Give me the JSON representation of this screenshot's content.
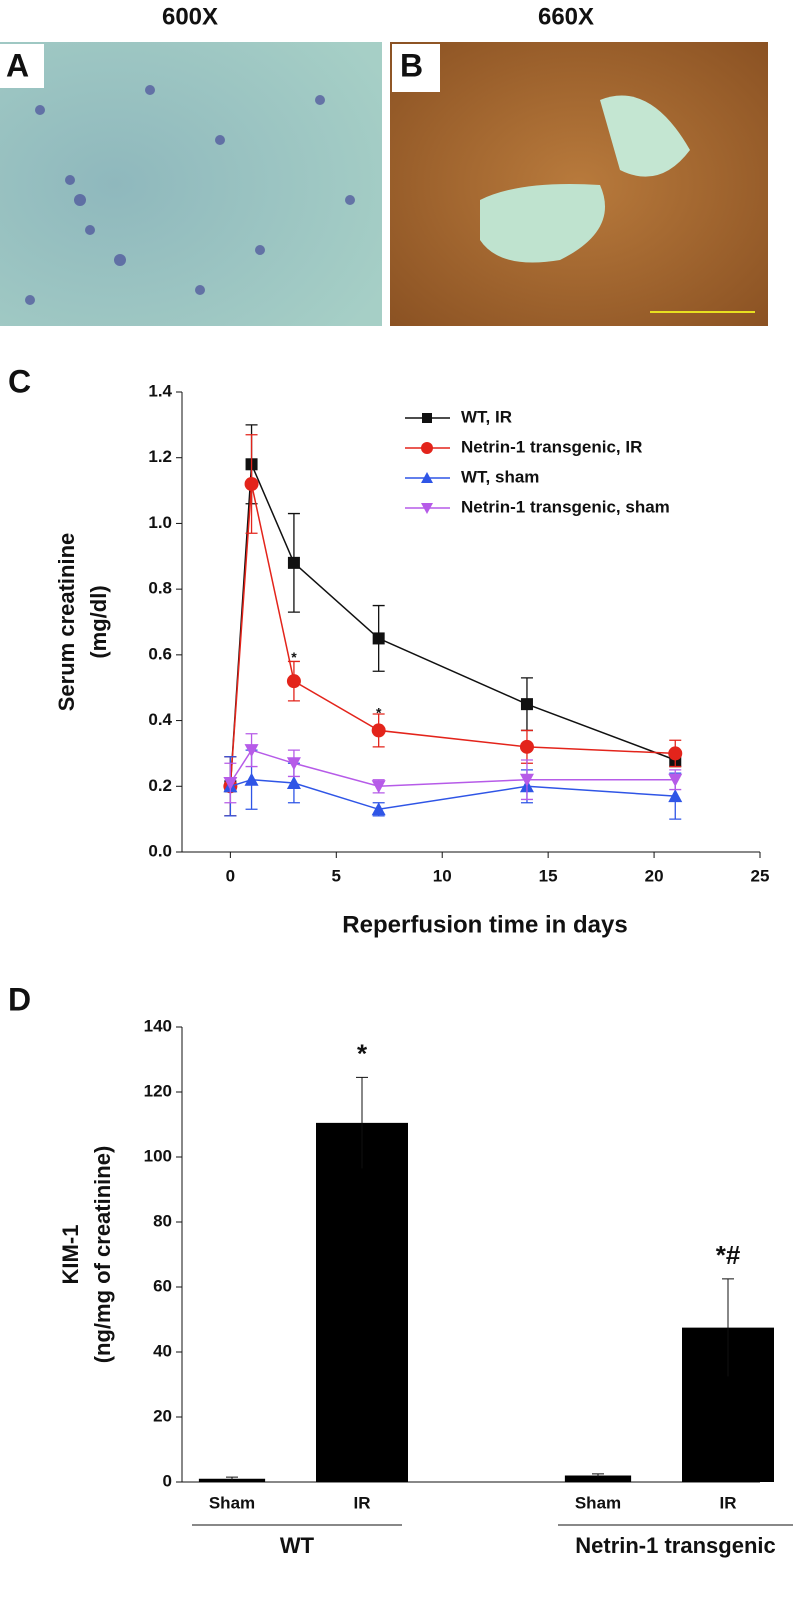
{
  "figure": {
    "panel_labels": [
      "A",
      "B",
      "C",
      "D"
    ],
    "magnifications": [
      "600X",
      "660X"
    ]
  },
  "chart_data": [
    {
      "type": "line",
      "xlabel": "Reperfusion time in days",
      "ylabel": [
        "Serum creatinine",
        "(mg/dl)"
      ],
      "x": [
        0,
        1,
        3,
        7,
        14,
        21
      ],
      "xlim": [
        -2,
        25
      ],
      "xticks": [
        0,
        5,
        10,
        15,
        20,
        25
      ],
      "ylim": [
        0,
        1.4
      ],
      "yticks": [
        {
          "value": 0,
          "label": "0.0"
        },
        0.2,
        0.4,
        0.6,
        0.8,
        {
          "value": 1,
          "label": "1.0"
        },
        1.2,
        1.4
      ],
      "legend": "top-right",
      "series": [
        {
          "name": "WT, IR",
          "color": "#111111",
          "marker": "square",
          "values": [
            0.2,
            1.18,
            0.88,
            0.65,
            0.45,
            0.28
          ],
          "errors": [
            0.09,
            0.12,
            0.15,
            0.1,
            0.08,
            0.02
          ]
        },
        {
          "name": "Netrin-1 transgenic, IR",
          "color": "#e3241b",
          "marker": "circle",
          "values": [
            0.2,
            1.12,
            0.52,
            0.37,
            0.32,
            0.3
          ],
          "errors": [
            0.09,
            0.15,
            0.06,
            0.05,
            0.05,
            0.04
          ]
        },
        {
          "name": "WT, sham",
          "color": "#2f55e6",
          "marker": "triangle-up",
          "values": [
            0.2,
            0.22,
            0.21,
            0.13,
            0.2,
            0.17
          ],
          "errors": [
            0.09,
            0.09,
            0.06,
            0.02,
            0.05,
            0.07
          ]
        },
        {
          "name": "Netrin-1 transgenic, sham",
          "color": "#b65be8",
          "marker": "triangle-down",
          "values": [
            0.21,
            0.31,
            0.27,
            0.2,
            0.22,
            0.22
          ],
          "errors": [
            0.06,
            0.05,
            0.04,
            0.02,
            0.06,
            0.03
          ]
        }
      ],
      "annotations": [
        {
          "text": "*",
          "x": 3,
          "y": 0.59
        },
        {
          "text": "*",
          "x": 7,
          "y": 0.42
        }
      ]
    },
    {
      "type": "bar",
      "ylabel": [
        "KIM-1",
        "(ng/mg of creatinine)"
      ],
      "ylim": [
        0,
        140
      ],
      "yticks": [
        0,
        20,
        40,
        60,
        80,
        100,
        120,
        140
      ],
      "color": "#000000",
      "groups": [
        {
          "name": "WT",
          "categories": [
            "Sham",
            "IR"
          ],
          "values": [
            1,
            110.5
          ],
          "errors": [
            0.5,
            14
          ],
          "annotations": [
            null,
            "*"
          ]
        },
        {
          "name": "Netrin-1 transgenic",
          "categories": [
            "Sham",
            "IR"
          ],
          "values": [
            2,
            47.5
          ],
          "errors": [
            0.5,
            15
          ],
          "annotations": [
            null,
            "*#"
          ]
        }
      ]
    }
  ]
}
